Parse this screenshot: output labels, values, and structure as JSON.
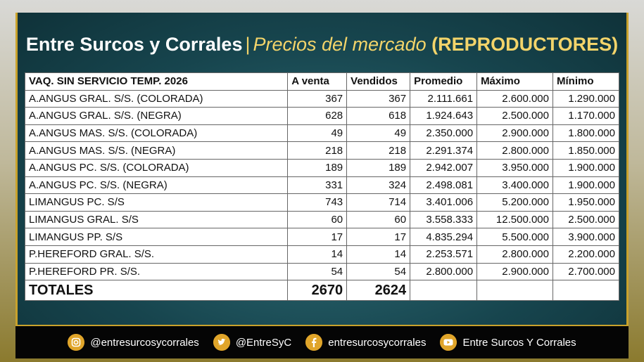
{
  "header": {
    "title": "Entre Surcos y Corrales",
    "separator": "|",
    "subtitle": "Precios del mercado",
    "tag": "(REPRODUCTORES)"
  },
  "table": {
    "columns": [
      "VAQ. SIN SERVICIO  TEMP. 2026",
      "A venta",
      "Vendidos",
      "Promedio",
      "Máximo",
      "Mínimo"
    ],
    "rows": [
      [
        "A.ANGUS GRAL. S/S. (COLORADA)",
        "367",
        "367",
        "2.111.661",
        "2.600.000",
        "1.290.000"
      ],
      [
        "A.ANGUS GRAL. S/S. (NEGRA)",
        "628",
        "618",
        "1.924.643",
        "2.500.000",
        "1.170.000"
      ],
      [
        "A.ANGUS MAS. S/S. (COLORADA)",
        "49",
        "49",
        "2.350.000",
        "2.900.000",
        "1.800.000"
      ],
      [
        "A.ANGUS MAS. S/S. (NEGRA)",
        "218",
        "218",
        "2.291.374",
        "2.800.000",
        "1.850.000"
      ],
      [
        "A.ANGUS PC. S/S. (COLORADA)",
        "189",
        "189",
        "2.942.007",
        "3.950.000",
        "1.900.000"
      ],
      [
        "A.ANGUS PC. S/S. (NEGRA)",
        "331",
        "324",
        "2.498.081",
        "3.400.000",
        "1.900.000"
      ],
      [
        "LIMANGUS PC. S/S",
        "743",
        "714",
        "3.401.006",
        "5.200.000",
        "1.950.000"
      ],
      [
        "LIMANGUS GRAL. S/S",
        "60",
        "60",
        "3.558.333",
        "12.500.000",
        "2.500.000"
      ],
      [
        "LIMANGUS PP. S/S",
        "17",
        "17",
        "4.835.294",
        "5.500.000",
        "3.900.000"
      ],
      [
        "P.HEREFORD GRAL. S/S.",
        "14",
        "14",
        "2.253.571",
        "2.800.000",
        "2.200.000"
      ],
      [
        "P.HEREFORD PR. S/S.",
        "54",
        "54",
        "2.800.000",
        "2.900.000",
        "2.700.000"
      ]
    ],
    "totals": {
      "label": "TOTALES",
      "a_venta": "2670",
      "vendidos": "2624"
    }
  },
  "footer": {
    "instagram": "@entresurcosycorrales",
    "twitter": "@EntreSyC",
    "facebook": "entresurcosycorrales",
    "youtube": "Entre Surcos Y Corrales"
  }
}
